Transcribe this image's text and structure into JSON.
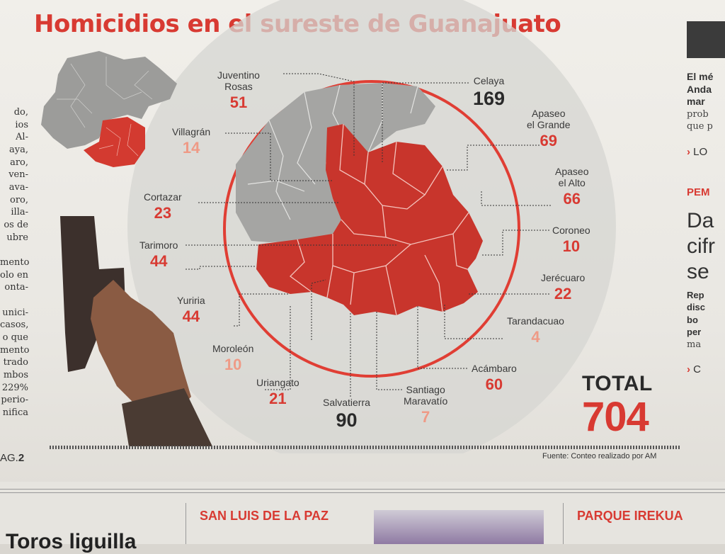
{
  "title": "Homicidios en el sureste de Guanajuato",
  "municipalities": [
    {
      "id": "juventino-rosas",
      "name_lines": [
        "Juventino",
        "Rosas"
      ],
      "value": "51",
      "tone": "red"
    },
    {
      "id": "celaya",
      "name_lines": [
        "Celaya"
      ],
      "value": "169",
      "tone": "dark"
    },
    {
      "id": "villagran",
      "name_lines": [
        "Villagrán"
      ],
      "value": "14",
      "tone": "pale"
    },
    {
      "id": "apaseo-el-grande",
      "name_lines": [
        "Apaseo",
        "el Grande"
      ],
      "value": "69",
      "tone": "red"
    },
    {
      "id": "apaseo-el-alto",
      "name_lines": [
        "Apaseo",
        "el Alto"
      ],
      "value": "66",
      "tone": "red"
    },
    {
      "id": "cortazar",
      "name_lines": [
        "Cortazar"
      ],
      "value": "23",
      "tone": "red"
    },
    {
      "id": "coroneo",
      "name_lines": [
        "Coroneo"
      ],
      "value": "10",
      "tone": "red"
    },
    {
      "id": "tarimoro",
      "name_lines": [
        "Tarimoro"
      ],
      "value": "44",
      "tone": "red"
    },
    {
      "id": "jerecuaro",
      "name_lines": [
        "Jerécuaro"
      ],
      "value": "22",
      "tone": "red"
    },
    {
      "id": "yuriria",
      "name_lines": [
        "Yuriria"
      ],
      "value": "44",
      "tone": "red"
    },
    {
      "id": "tarandacuao",
      "name_lines": [
        "Tarandacuao"
      ],
      "value": "4",
      "tone": "pale"
    },
    {
      "id": "moroleon",
      "name_lines": [
        "Moroleón"
      ],
      "value": "10",
      "tone": "pale"
    },
    {
      "id": "acambaro",
      "name_lines": [
        "Acámbaro"
      ],
      "value": "60",
      "tone": "red"
    },
    {
      "id": "uriangato",
      "name_lines": [
        "Uriangato"
      ],
      "value": "21",
      "tone": "red"
    },
    {
      "id": "salvatierra",
      "name_lines": [
        "Salvatierra"
      ],
      "value": "90",
      "tone": "dark"
    },
    {
      "id": "santiago-maravatio",
      "name_lines": [
        "Santiago",
        "Maravatío"
      ],
      "value": "7",
      "tone": "pale"
    }
  ],
  "total": {
    "label": "TOTAL",
    "value": "704"
  },
  "source": "Fuente: Conteo realizado por AM",
  "page_ref": {
    "prefix": "AG.",
    "num": "2"
  },
  "left_column": [
    "do,",
    "ios",
    "Al-",
    "aya,",
    "aro,",
    "ven-",
    "ava-",
    "oro,",
    "illa-",
    "os de",
    "ubre",
    "",
    "mento",
    "olo en",
    "onta-",
    "",
    "unici-",
    "casos,",
    "o que",
    "mento",
    "trado",
    "mbos",
    "229%",
    "perio-",
    "nifica"
  ],
  "right_column": {
    "title_lines": [
      "El mé",
      "Anda",
      "mar"
    ],
    "body_lines": [
      "prob",
      "que p"
    ],
    "link1": "LO",
    "section": "PEM",
    "big_lines": [
      "Da",
      "cifr",
      "se"
    ],
    "sub_lines": [
      "Rep",
      "disc",
      "bo",
      "per"
    ],
    "tail": "ma",
    "link2": "C"
  },
  "bottom": {
    "section_left": "SAN LUIS DE LA PAZ",
    "section_right": "PARQUE IREKUA",
    "headline_left": "Toros liguilla"
  },
  "colors": {
    "accent": "#d83a32",
    "map_gray": "#a5a5a3",
    "circle_bg": "#d6d5d2"
  }
}
